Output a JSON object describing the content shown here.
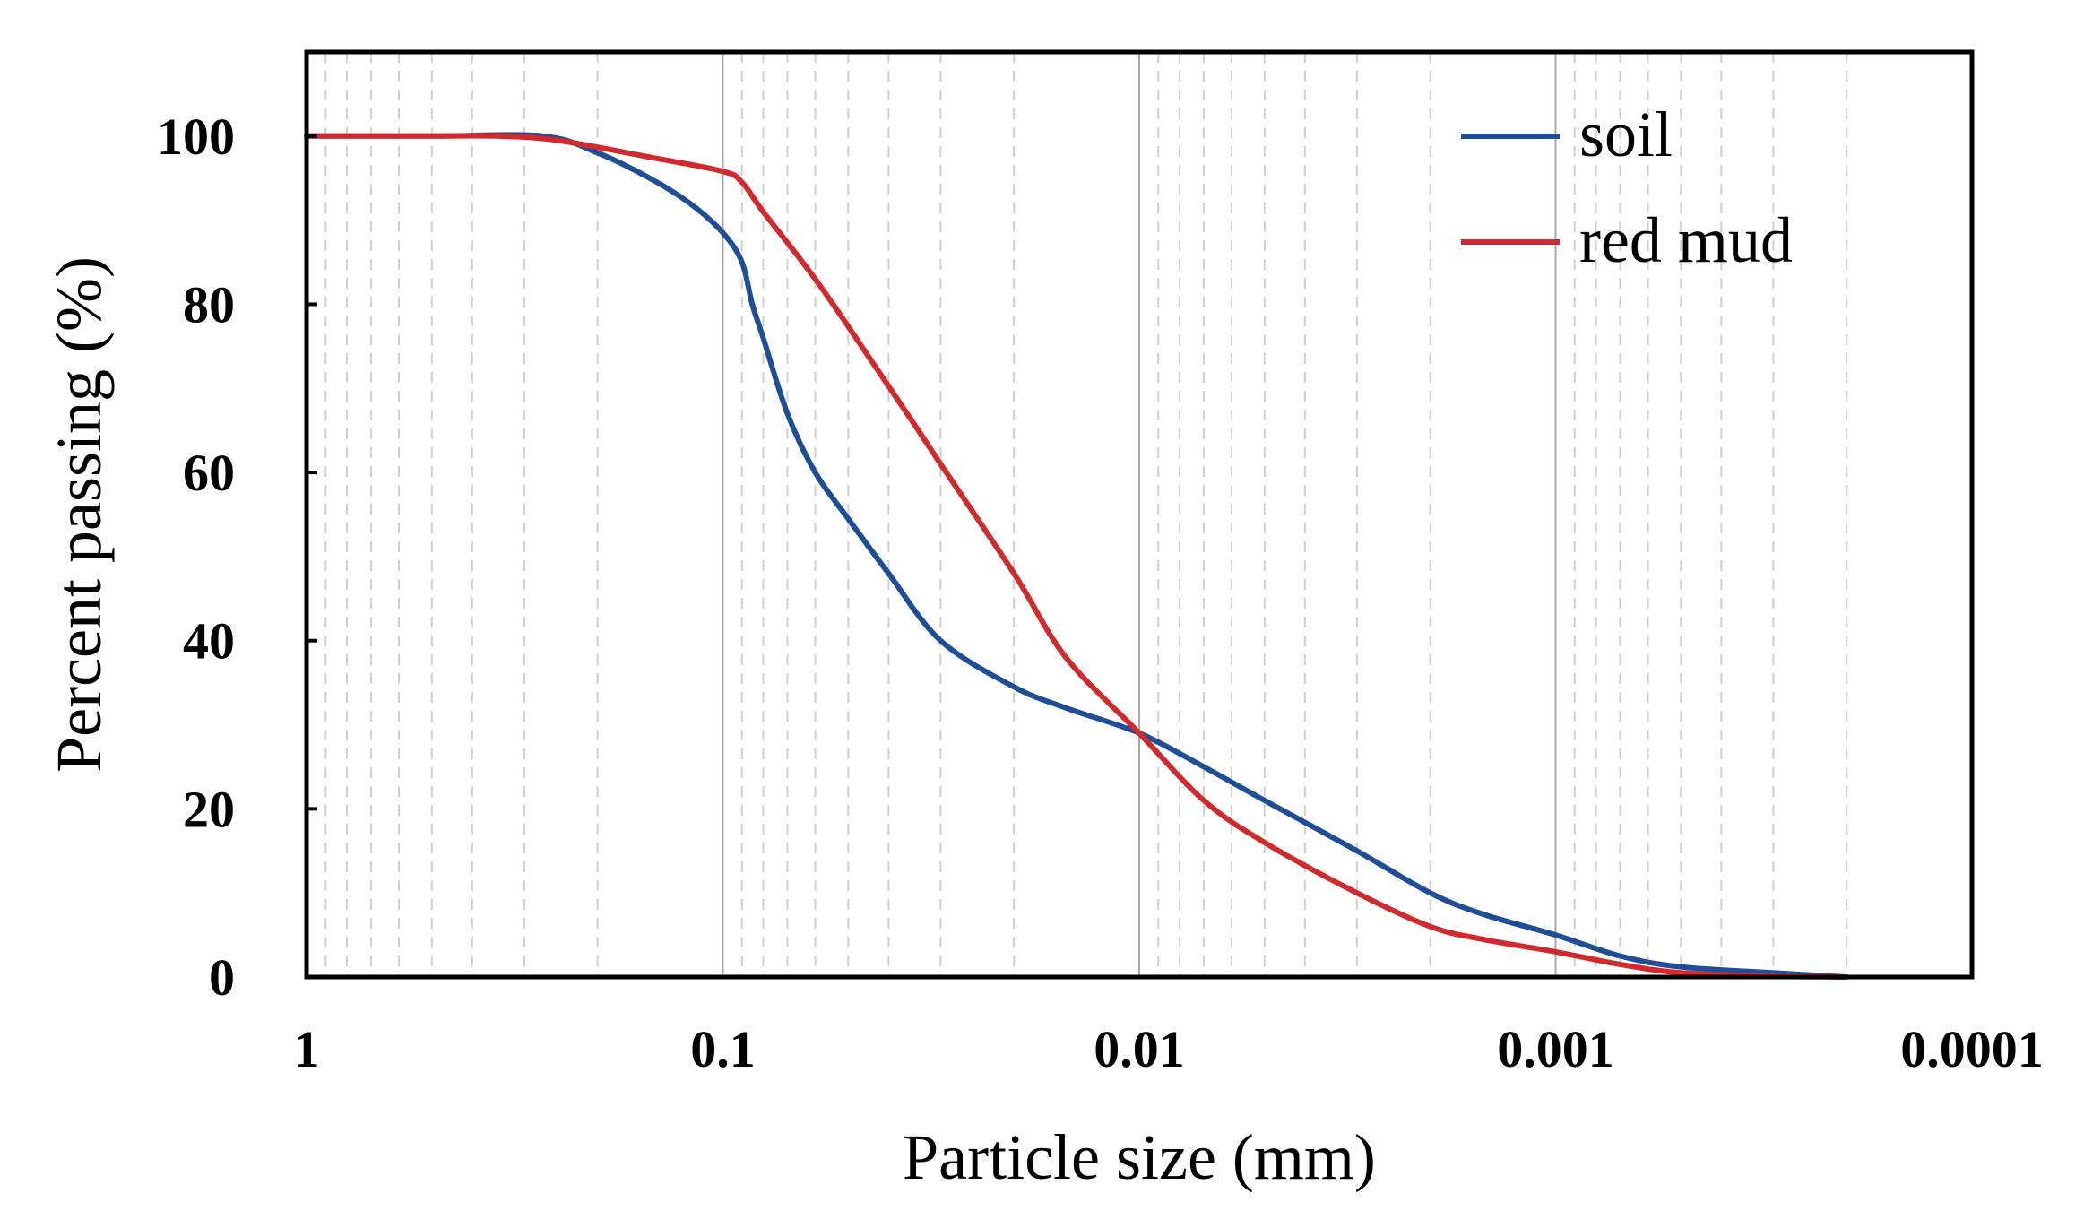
{
  "chart_data": {
    "type": "line",
    "title": "",
    "xlabel": "Particle size (mm)",
    "ylabel": "Percent passing (%)",
    "x_scale": "log",
    "x_reversed": true,
    "xlim": [
      1,
      0.0001
    ],
    "ylim": [
      0,
      110
    ],
    "x_ticks": [
      {
        "value": 1,
        "label": "1"
      },
      {
        "value": 0.1,
        "label": "0.1"
      },
      {
        "value": 0.01,
        "label": "0.01"
      },
      {
        "value": 0.001,
        "label": "0.001"
      },
      {
        "value": 0.0001,
        "label": "0.0001"
      }
    ],
    "y_ticks": [
      {
        "value": 0,
        "label": "0"
      },
      {
        "value": 20,
        "label": "20"
      },
      {
        "value": 40,
        "label": "40"
      },
      {
        "value": 60,
        "label": "60"
      },
      {
        "value": 80,
        "label": "80"
      },
      {
        "value": 100,
        "label": "100"
      }
    ],
    "grid": {
      "major_x": true,
      "minor_x": true,
      "y": false
    },
    "legend_position": "top-right",
    "series": [
      {
        "name": "soil",
        "color": "#1f4e96",
        "x": [
          1,
          0.5,
          0.27,
          0.2,
          0.15,
          0.12,
          0.1,
          0.09,
          0.085,
          0.08,
          0.07,
          0.06,
          0.05,
          0.04,
          0.03,
          0.02,
          0.015,
          0.01,
          0.007,
          0.005,
          0.003,
          0.002,
          0.0015,
          0.001,
          0.0007,
          0.0005,
          0.0003,
          0.0002
        ],
        "y": [
          100,
          100,
          100,
          98,
          95,
          92,
          88.5,
          85,
          80,
          76,
          67,
          60,
          54.5,
          48,
          40,
          34.5,
          32,
          29,
          25,
          21,
          15,
          10,
          7.5,
          5,
          2.5,
          1.2,
          0.5,
          0
        ]
      },
      {
        "name": "red mud",
        "color": "#d12a2e",
        "x": [
          1,
          0.5,
          0.35,
          0.25,
          0.15,
          0.1,
          0.09,
          0.08,
          0.06,
          0.045,
          0.035,
          0.03,
          0.02,
          0.015,
          0.01,
          0.007,
          0.005,
          0.003,
          0.002,
          0.0015,
          0.001,
          0.0007,
          0.0005,
          0.0003,
          0.0002
        ],
        "y": [
          100,
          100,
          100,
          99.5,
          97.5,
          95.8,
          94.5,
          91,
          83,
          74,
          66,
          61,
          48,
          38,
          29,
          21,
          16,
          10,
          6,
          4.5,
          3,
          1.5,
          0.5,
          0.1,
          0
        ]
      }
    ]
  }
}
